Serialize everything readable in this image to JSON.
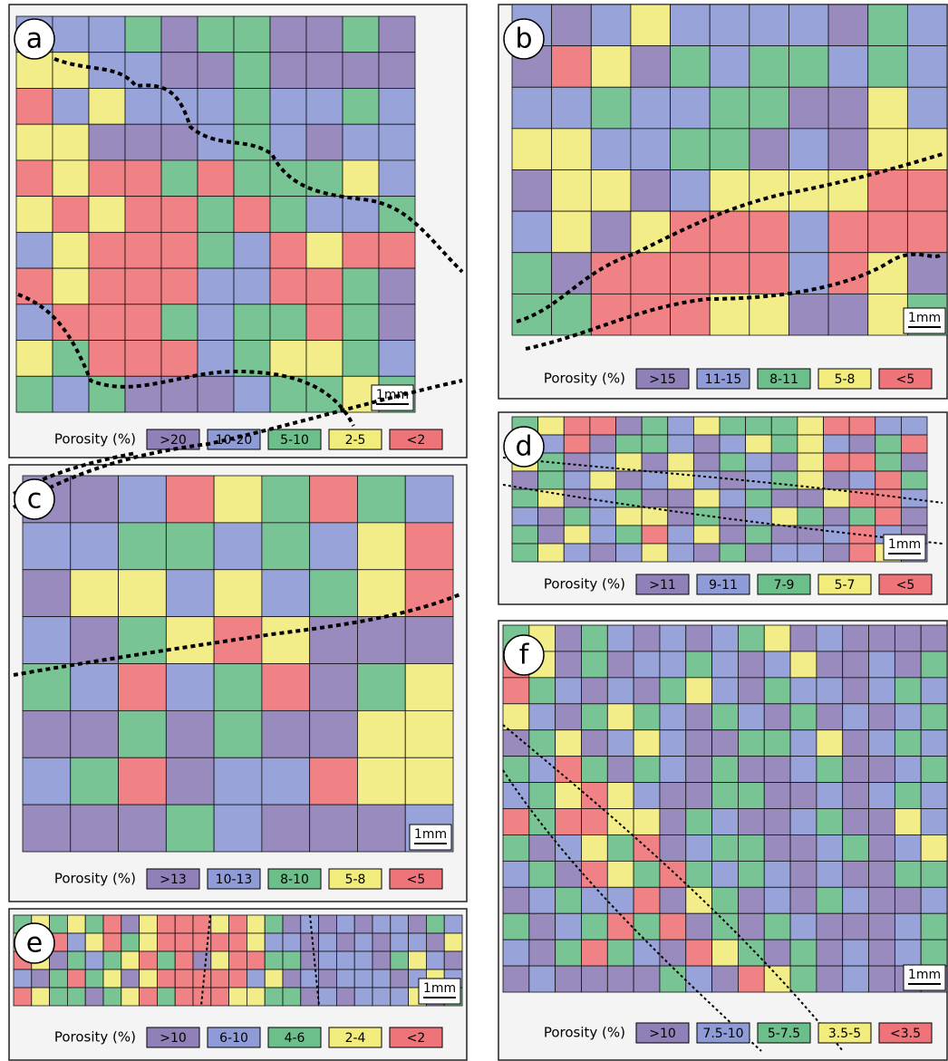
{
  "class_colors": [
    "#8f80b8",
    "#8e9bd6",
    "#6cbf8b",
    "#f2ec7c",
    "#ef7479"
  ],
  "panels": [
    {
      "label": "a",
      "legend_title": "Porosity (%)",
      "legend": [
        ">20",
        "10-20",
        "5-10",
        "2-5",
        "<2"
      ],
      "scale_bar": "1mm",
      "grid": [
        "11120220020",
        "33110020000",
        "41311121121",
        "33000121011",
        "43442422231",
        "34344242112",
        "13444214344",
        "43444114420",
        "14442122420",
        "32444123321",
        "21200012232"
      ]
    },
    {
      "label": "b",
      "legend_title": "Porosity (%)",
      "legend": [
        ">15",
        "11-15",
        "8-11",
        "5-8",
        "<5"
      ],
      "scale_bar": "1mm",
      "grid": [
        "10131111021",
        "04302122121",
        "11211220031",
        "33112201033",
        "03301333344",
        "13034441444",
        "20444441430",
        "22444330032"
      ]
    },
    {
      "label": "c",
      "legend_title": "Porosity (%)",
      "legend": [
        ">13",
        "10-13",
        "8-10",
        "5-8",
        "<5"
      ],
      "scale_bar": "1mm",
      "grid": [
        "001432421",
        "112212134",
        "033131234",
        "102343000",
        "214124023",
        "002020033",
        "124011433",
        "000210001"
      ]
    },
    {
      "label": "d",
      "legend_title": "Porosity (%)",
      "legend": [
        ">11",
        "9-11",
        "7-9",
        "5-7",
        "<5"
      ],
      "scale_bar": "1mm",
      "grid": [
        "2344021322234411",
        "3140221013231024",
        "3201303021034420",
        "0213013101230142",
        "2301200312003441",
        "1021330201320240",
        "2031241302001410",
        "2310131020110431"
      ]
    },
    {
      "label": "e",
      "legend_title": "Porosity (%)",
      "legend": [
        ">10",
        "6-10",
        "4-6",
        "2-4",
        "<2"
      ],
      "scale_bar": "1mm",
      "grid": [
        "2323240344434320101011021",
        "3241342344444311010101103",
        "4302123424034422011102310",
        "1024230344444130101110131",
        "4322023424443322010111302"
      ]
    },
    {
      "label": "f",
      "legend_title": "Porosity (%)",
      "legend": [
        ">10",
        "7.5-10",
        "5-7.5",
        "3.5-5",
        "<3.5"
      ],
      "scale_bar": "1mm",
      "grid": [
        "23021010123010000",
        "43020112101300102",
        "42101023102110121",
        "31023210210201012",
        "02301310022130121",
        "21420210200120012",
        "12343100220010121",
        "42443302100120031",
        "20132401220012013",
        "12043242121010022",
        "01211403201021001",
        "20124240202100012",
        "10242104320201012",
        "01000021043201000"
      ]
    }
  ]
}
